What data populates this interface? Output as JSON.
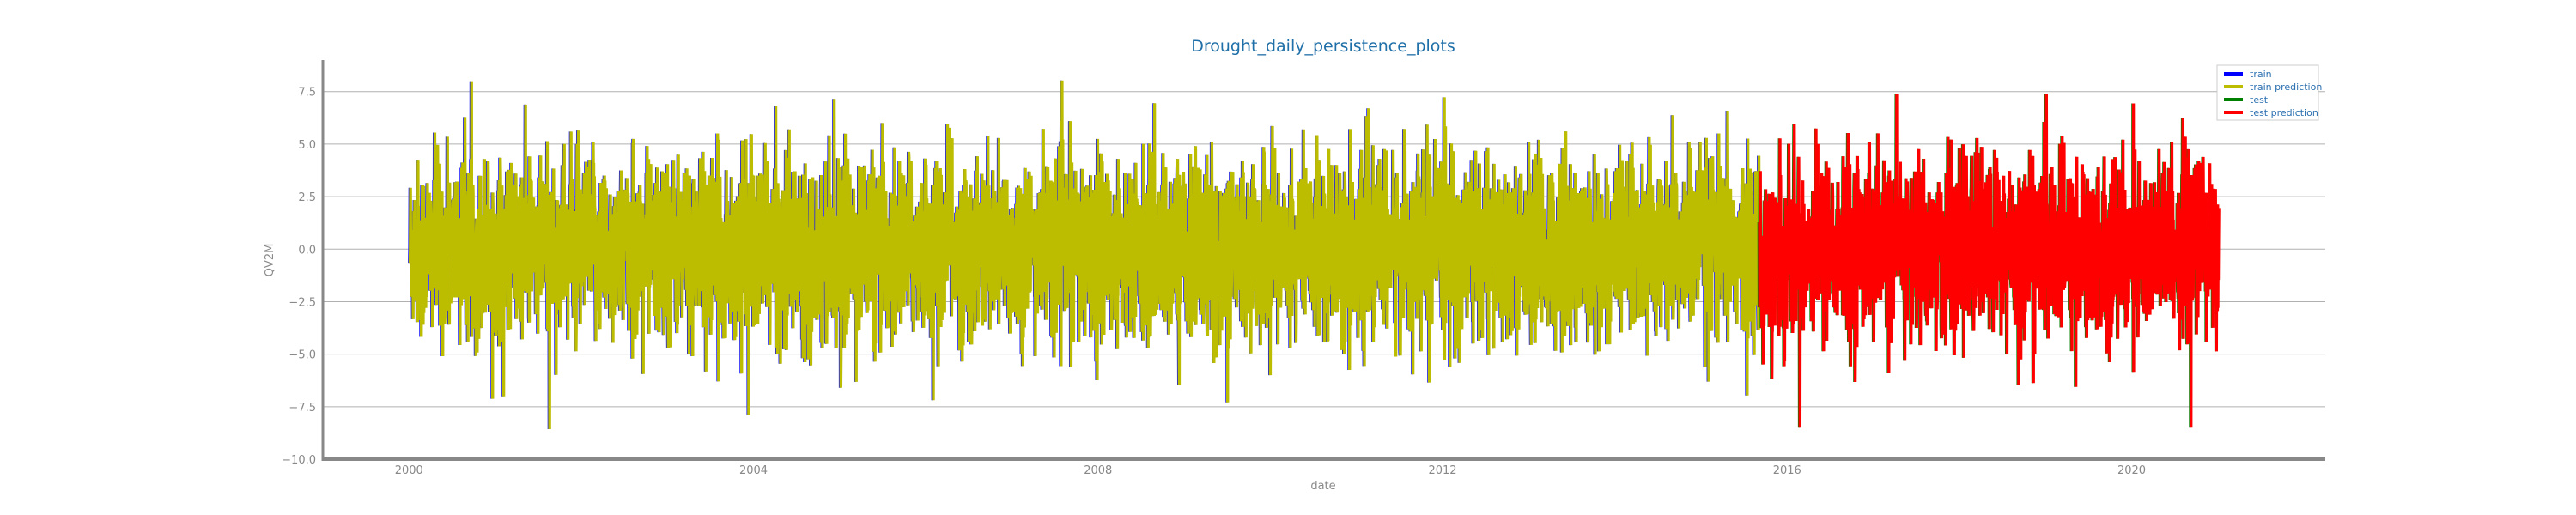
{
  "chart_data": {
    "type": "line",
    "title": "Drought_daily_persistence_plots",
    "xlabel": "date",
    "ylabel": "QV2M",
    "xlim": [
      "1999-01-01",
      "2022-04-01"
    ],
    "ylim": [
      -10,
      9
    ],
    "grid": "horizontal",
    "legend_position": "top-right",
    "y_ticks": [
      -10.0,
      -7.5,
      -5.0,
      -2.5,
      0.0,
      2.5,
      5.0,
      7.5
    ],
    "y_tick_labels": [
      "−10.0",
      "−7.5",
      "−5.0",
      "−2.5",
      "0.0",
      "2.5",
      "5.0",
      "7.5"
    ],
    "x_ticks": [
      "2000-01-01",
      "2004-01-01",
      "2008-01-01",
      "2012-01-01",
      "2016-01-01",
      "2020-01-01"
    ],
    "x_tick_labels": [
      "2000",
      "2004",
      "2008",
      "2012",
      "2016",
      "2020"
    ],
    "series": [
      {
        "name": "train",
        "color": "#0000ff",
        "range": [
          "2000-01-01",
          "2015-08-31"
        ],
        "min": -9.2,
        "max": 8.2
      },
      {
        "name": "train prediction",
        "color": "#bcbd00",
        "range": [
          "2000-01-02",
          "2015-08-31"
        ],
        "min": -9.2,
        "max": 8.2
      },
      {
        "name": "test",
        "color": "#008000",
        "range": [
          "2015-09-01",
          "2020-12-31"
        ],
        "min": -8.5,
        "max": 7.4
      },
      {
        "name": "test prediction",
        "color": "#ff0000",
        "range": [
          "2015-09-02",
          "2020-12-31"
        ],
        "min": -8.5,
        "max": 7.4
      }
    ]
  }
}
